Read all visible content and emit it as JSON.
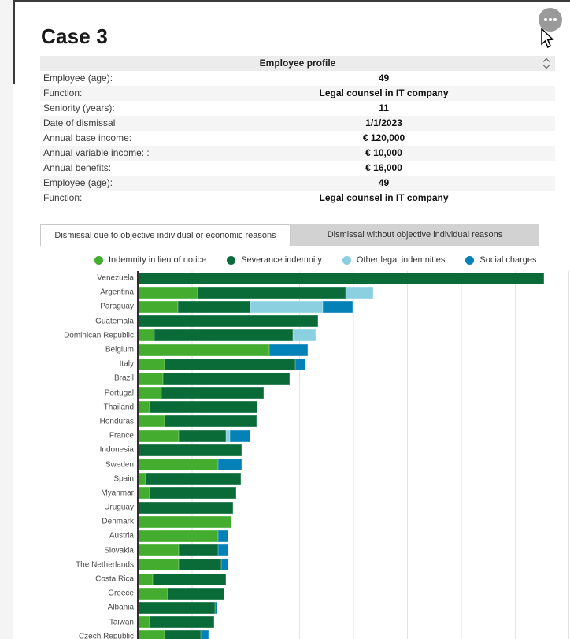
{
  "page": {
    "title": "Case 3"
  },
  "icons": {
    "menu": "ellipsis",
    "sort": "up-down-carets",
    "cursor": "arrow-pointer"
  },
  "profile_table": {
    "title": "Employee profile",
    "rows": [
      {
        "label": "Employee (age):",
        "value": "49"
      },
      {
        "label": "Function:",
        "value": "Legal counsel in IT company"
      },
      {
        "label": "Seniority (years):",
        "value": "11"
      },
      {
        "label": "Date of dismissal",
        "value": "1/1/2023"
      },
      {
        "label": "Annual base income:",
        "value": "€ 120,000"
      },
      {
        "label": "Annual variable income: :",
        "value": "€ 10,000"
      },
      {
        "label": "Annual benefits:",
        "value": "€ 16,000"
      },
      {
        "label": "Employee (age):",
        "value": "49"
      },
      {
        "label": "Function:",
        "value": "Legal counsel in IT company"
      }
    ]
  },
  "tabs": [
    {
      "label": "Dismissal due to objective individual or economic reasons",
      "active": true
    },
    {
      "label": "Dismissal without objective individual reasons",
      "active": false
    }
  ],
  "chart_data": {
    "type": "bar",
    "orientation": "horizontal",
    "stacked": true,
    "title": "",
    "xlabel": "",
    "ylabel": "",
    "legend_position": "top",
    "grid": true,
    "axis_note": "x-axis tick labels are not visible in the screenshot; values are estimated in units where one gridline interval = 100",
    "x_gridline_interval": 100,
    "xlim": [
      0,
      800
    ],
    "categories": [
      "Venezuela",
      "Argentina",
      "Paraguay",
      "Guatemala",
      "Dominican Republic",
      "Belgium",
      "Italy",
      "Brazil",
      "Portugal",
      "Thailand",
      "Honduras",
      "France",
      "Indonesia",
      "Sweden",
      "Spain",
      "Myanmar",
      "Uruguay",
      "Denmark",
      "Austria",
      "Slovakia",
      "The Netherlands",
      "Costa Rica",
      "Greece",
      "Albania",
      "Taiwan",
      "Czech Republic"
    ],
    "series": [
      {
        "name": "Indemnity in lieu of notice",
        "color": "#44ac2f",
        "values": [
          0,
          110,
          73,
          0,
          29,
          243,
          48,
          45,
          43,
          21,
          48,
          74,
          0,
          147,
          13,
          21,
          0,
          173,
          147,
          74,
          74,
          26,
          54,
          0,
          21,
          48
        ]
      },
      {
        "name": "Severance indemnity",
        "color": "#0a6b39",
        "values": [
          753,
          274,
          135,
          334,
          258,
          0,
          243,
          235,
          189,
          200,
          172,
          89,
          192,
          0,
          177,
          160,
          175,
          0,
          0,
          73,
          80,
          136,
          106,
          142,
          120,
          67
        ]
      },
      {
        "name": "Other legal indemnities",
        "color": "#8bd0e0",
        "values": [
          0,
          52,
          134,
          0,
          42,
          0,
          0,
          0,
          0,
          0,
          0,
          6,
          0,
          0,
          0,
          0,
          0,
          0,
          0,
          0,
          0,
          0,
          0,
          0,
          0,
          0
        ]
      },
      {
        "name": "Social charges",
        "color": "#0482b8",
        "values": [
          0,
          0,
          56,
          0,
          0,
          72,
          19,
          0,
          0,
          0,
          0,
          38,
          0,
          45,
          0,
          0,
          0,
          0,
          19,
          19,
          13,
          0,
          0,
          4,
          0,
          15
        ]
      }
    ]
  }
}
